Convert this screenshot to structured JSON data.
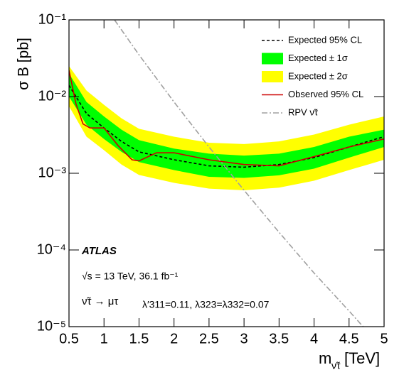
{
  "chart_data": {
    "type": "line",
    "y_label": "σ B [pb]",
    "x_label": "m",
    "x_label_sub": "ν̃τ",
    "x_label_unit": "[TeV]",
    "log_y": true,
    "xlim": [
      0.5,
      5
    ],
    "xticks": [
      0.5,
      1,
      1.5,
      2,
      2.5,
      3,
      3.5,
      4,
      4.5,
      5
    ],
    "ylim": [
      1e-05,
      0.1
    ],
    "yticks": [
      {
        "value": 1e-05,
        "label": "10⁻⁵"
      },
      {
        "value": 0.0001,
        "label": "10⁻⁴"
      },
      {
        "value": 0.001,
        "label": "10⁻³"
      },
      {
        "value": 0.01,
        "label": "10⁻²"
      },
      {
        "value": 0.1,
        "label": "10⁻¹"
      }
    ],
    "x": [
      0.5,
      0.75,
      1,
      1.25,
      1.5,
      2,
      2.5,
      3,
      3.5,
      4,
      4.5,
      5
    ],
    "bands": [
      {
        "name": "Expected ± 2σ",
        "color": "#ffff00",
        "upper": [
          0.025,
          0.012,
          0.0078,
          0.0052,
          0.0038,
          0.003,
          0.0025,
          0.0024,
          0.0026,
          0.0032,
          0.0043,
          0.0055
        ],
        "lower": [
          0.0075,
          0.003,
          0.002,
          0.0013,
          0.00095,
          0.00075,
          0.00063,
          0.0006,
          0.00065,
          0.0008,
          0.0011,
          0.0015
        ]
      },
      {
        "name": "Expected ± 1σ",
        "color": "#00ff00",
        "upper": [
          0.02,
          0.0085,
          0.0055,
          0.0037,
          0.0027,
          0.0021,
          0.0018,
          0.0017,
          0.0018,
          0.0022,
          0.003,
          0.0037
        ],
        "lower": [
          0.01,
          0.0043,
          0.0028,
          0.0019,
          0.0014,
          0.0011,
          0.0009,
          0.00087,
          0.00094,
          0.00115,
          0.0016,
          0.0022
        ]
      }
    ],
    "series": [
      {
        "name": "Expected 95% CL",
        "color": "#000000",
        "dash": "4,3",
        "x": [
          0.5,
          0.75,
          1,
          1.25,
          1.5,
          2,
          2.5,
          3,
          3.5,
          4,
          4.5,
          5
        ],
        "values": [
          0.014,
          0.006,
          0.0039,
          0.0026,
          0.0019,
          0.0015,
          0.00125,
          0.0012,
          0.0013,
          0.0016,
          0.0022,
          0.003
        ]
      },
      {
        "name": "Observed 95% CL",
        "color": "#cc0000",
        "dash": "none",
        "x": [
          0.5,
          0.6,
          0.7,
          0.8,
          1,
          1.2,
          1.4,
          1.5,
          1.75,
          2,
          2.5,
          3,
          3.5,
          4,
          4.5,
          5
        ],
        "values": [
          0.022,
          0.008,
          0.0044,
          0.0039,
          0.0039,
          0.0023,
          0.0015,
          0.00145,
          0.00185,
          0.00185,
          0.0015,
          0.0013,
          0.00125,
          0.00165,
          0.0022,
          0.0028
        ]
      },
      {
        "name": "RPV ν̃τ",
        "color": "#a0a0a0",
        "dash": "8,3,2,3",
        "x": [
          1.15,
          1.5,
          2,
          2.5,
          3,
          3.5,
          4,
          4.5,
          4.7
        ],
        "values": [
          0.1,
          0.035,
          0.0085,
          0.0022,
          0.0006,
          0.00017,
          5e-05,
          1.6e-05,
          1e-05
        ]
      }
    ],
    "annotations": [
      "ATLAS",
      "√s = 13 TeV, 36.1 fb⁻¹",
      "ν̃τ → μτ",
      "λ′311=0.11, λ323=λ332=0.07"
    ]
  }
}
